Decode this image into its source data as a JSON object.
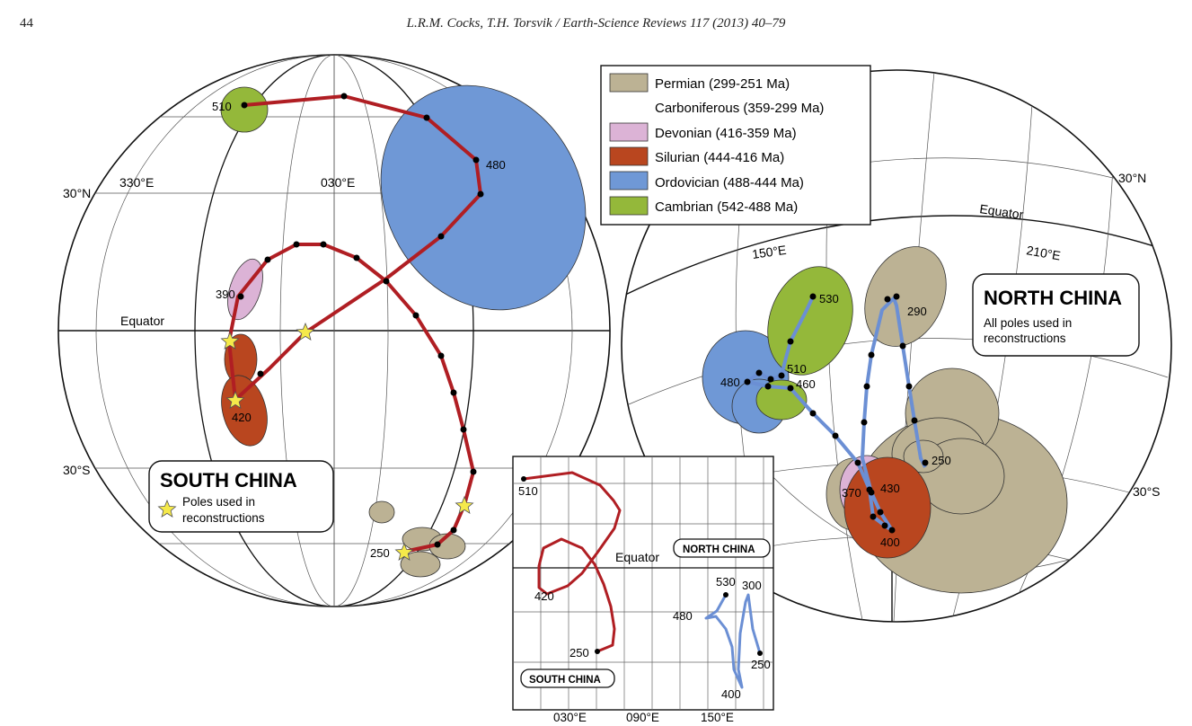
{
  "header": {
    "page_number": "44",
    "citation": "L.R.M. Cocks, T.H. Torsvik / Earth-Science Reviews 117 (2013) 40–79"
  },
  "legend": {
    "items": [
      {
        "label": "Permian (299-251 Ma)",
        "color": "#bcb294"
      },
      {
        "label": "Carboniferous (359-299 Ma)",
        "color": "#ffffff"
      },
      {
        "label": "Devonian (416-359 Ma)",
        "color": "#dcb3d6"
      },
      {
        "label": "Silurian (444-416 Ma)",
        "color": "#b9461f"
      },
      {
        "label": "Ordovician (488-444 Ma)",
        "color": "#6f98d6"
      },
      {
        "label": "Cambrian (542-488 Ma)",
        "color": "#94b83a"
      }
    ]
  },
  "south_globe": {
    "labels": {
      "lat_30n": "30°N",
      "lon_330e": "330°E",
      "lon_030e": "030°E",
      "equator": "Equator",
      "lat_30s": "30°S"
    },
    "ages": {
      "a510": "510",
      "a480": "480",
      "a390": "390",
      "a420": "420",
      "a250": "250"
    },
    "title_box": {
      "title": "SOUTH CHINA",
      "note_line1": "Poles used in",
      "note_line2": "reconstructions"
    }
  },
  "north_globe": {
    "labels": {
      "lat_30n": "30°N",
      "equator": "Equator",
      "lon_150e": "150°E",
      "lon_210e": "210°E",
      "lat_30s": "30°S"
    },
    "ages": {
      "a530": "530",
      "a290": "290",
      "a510": "510",
      "a480": "480",
      "a460": "460",
      "a250": "250",
      "a370": "370",
      "a430": "430",
      "a400": "400"
    },
    "title_box": {
      "title": "NORTH CHINA",
      "note_line1": "All poles used in",
      "note_line2": "reconstructions"
    }
  },
  "inset": {
    "equator": "Equator",
    "north_label": "NORTH CHINA",
    "south_label": "SOUTH CHINA",
    "ages": {
      "a510": "510",
      "a420": "420",
      "a250": "250",
      "a530": "530",
      "a300": "300",
      "a480": "480",
      "a250b": "250",
      "a400": "400"
    },
    "x_ticks": [
      "030°E",
      "090°E",
      "150°E"
    ]
  },
  "colors": {
    "south_path": "#b01e23",
    "north_path": "#6b8fd4",
    "star": "#f5e94a"
  }
}
